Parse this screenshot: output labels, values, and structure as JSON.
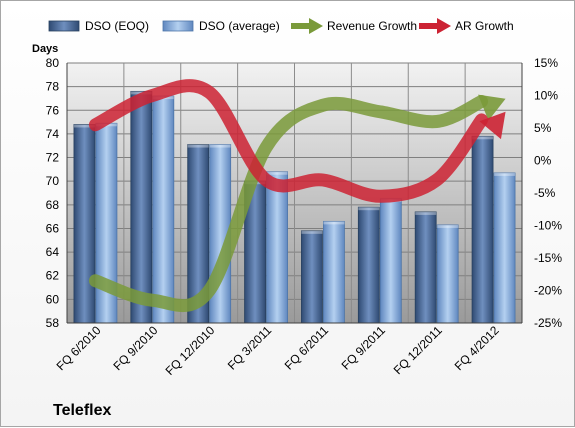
{
  "chart_data": {
    "type": "bar",
    "title": "Teleflex",
    "ylabel": "Days",
    "ylim": [
      58,
      80
    ],
    "y_ticks": [
      58,
      60,
      62,
      64,
      66,
      68,
      70,
      72,
      74,
      76,
      78,
      80
    ],
    "y2lim": [
      -25,
      15
    ],
    "y2_ticks": [
      -25,
      -20,
      -15,
      -10,
      -5,
      0,
      5,
      10,
      15
    ],
    "y2_tick_labels": [
      "-25%",
      "-20%",
      "-15%",
      "-10%",
      "-5%",
      "0%",
      "5%",
      "10%",
      "15%"
    ],
    "categories": [
      "FQ 6/2010",
      "FQ 9/2010",
      "FQ 12/2010",
      "FQ 3/2011",
      "FQ 6/2011",
      "FQ 9/2011",
      "FQ 12/2011",
      "FQ 4/2012"
    ],
    "grid": true,
    "legend_position": "top",
    "series": [
      {
        "name": "DSO (EOQ)",
        "type": "bar",
        "axis": "left",
        "color": "#4f6f9f",
        "values": [
          74.8,
          77.6,
          73.1,
          70.0,
          65.8,
          67.8,
          67.4,
          73.8
        ]
      },
      {
        "name": "DSO (average)",
        "type": "bar",
        "axis": "left",
        "color": "#8fb3e0",
        "values": [
          74.9,
          77.2,
          73.1,
          70.8,
          66.6,
          68.5,
          66.3,
          70.7
        ]
      },
      {
        "name": "Revenue Growth",
        "type": "line",
        "axis": "right",
        "color": "#7a9a3a",
        "values": [
          -18.5,
          -21.5,
          -20.0,
          2.0,
          8.5,
          7.5,
          6.0,
          9.5
        ]
      },
      {
        "name": "AR Growth",
        "type": "line",
        "axis": "right",
        "color": "#cc2233",
        "values": [
          5.5,
          10.0,
          10.5,
          -3.0,
          -3.0,
          -5.5,
          -3.0,
          7.5
        ]
      }
    ]
  }
}
